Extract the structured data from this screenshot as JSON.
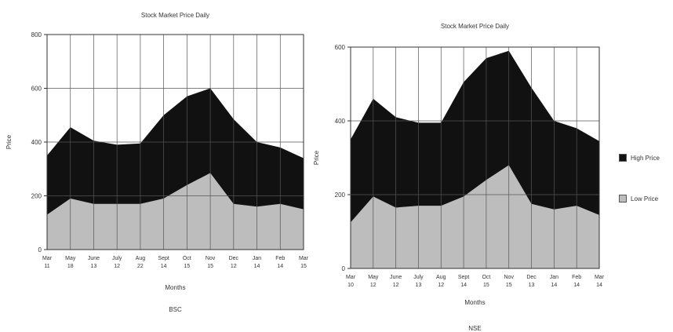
{
  "colors": {
    "high": "#111111",
    "low": "#bdbdbd",
    "grid": "#555555",
    "axis": "#333333",
    "text": "#333333"
  },
  "chart_data": [
    {
      "type": "area",
      "title": "Stock Market Price Daily",
      "xlabel": "Months",
      "ylabel": "Price",
      "caption": "BSC",
      "ylim": [
        0,
        800
      ],
      "yticks": [
        "0",
        "200",
        "400",
        "600",
        "800"
      ],
      "categories": [
        "Mar\n11",
        "May\n18",
        "June\n13",
        "July\n12",
        "Aug\n22",
        "Sept\n14",
        "Oct\n15",
        "Nov\n15",
        "Dec\n12",
        "Jan\n14",
        "Feb\n14",
        "Mar\n15"
      ],
      "series": [
        {
          "name": "High Price",
          "values": [
            350,
            455,
            405,
            390,
            395,
            500,
            570,
            600,
            485,
            400,
            380,
            340
          ]
        },
        {
          "name": "Low Price",
          "values": [
            130,
            190,
            170,
            170,
            170,
            190,
            240,
            285,
            170,
            160,
            170,
            150
          ]
        }
      ]
    },
    {
      "type": "area",
      "title": "Stock Market Price Daily",
      "xlabel": "Months",
      "ylabel": "Price",
      "caption": "NSE",
      "ylim": [
        0,
        600
      ],
      "yticks": [
        "0",
        "200",
        "400",
        "600"
      ],
      "categories": [
        "Mar\n10",
        "May\n12",
        "June\n12",
        "July\n13",
        "Aug\n12",
        "Sept\n14",
        "Oct\n15",
        "Nov\n15",
        "Dec\n13",
        "Jan\n14",
        "Feb\n14",
        "Mar\n14"
      ],
      "series": [
        {
          "name": "High Price",
          "values": [
            350,
            460,
            410,
            395,
            395,
            505,
            570,
            590,
            490,
            400,
            380,
            345
          ]
        },
        {
          "name": "Low Price",
          "values": [
            125,
            195,
            165,
            170,
            170,
            195,
            240,
            280,
            175,
            160,
            170,
            145
          ]
        }
      ]
    }
  ],
  "legend": {
    "items": [
      {
        "label": "High Price",
        "color": "#111111"
      },
      {
        "label": "Low Price",
        "color": "#bdbdbd"
      }
    ]
  }
}
